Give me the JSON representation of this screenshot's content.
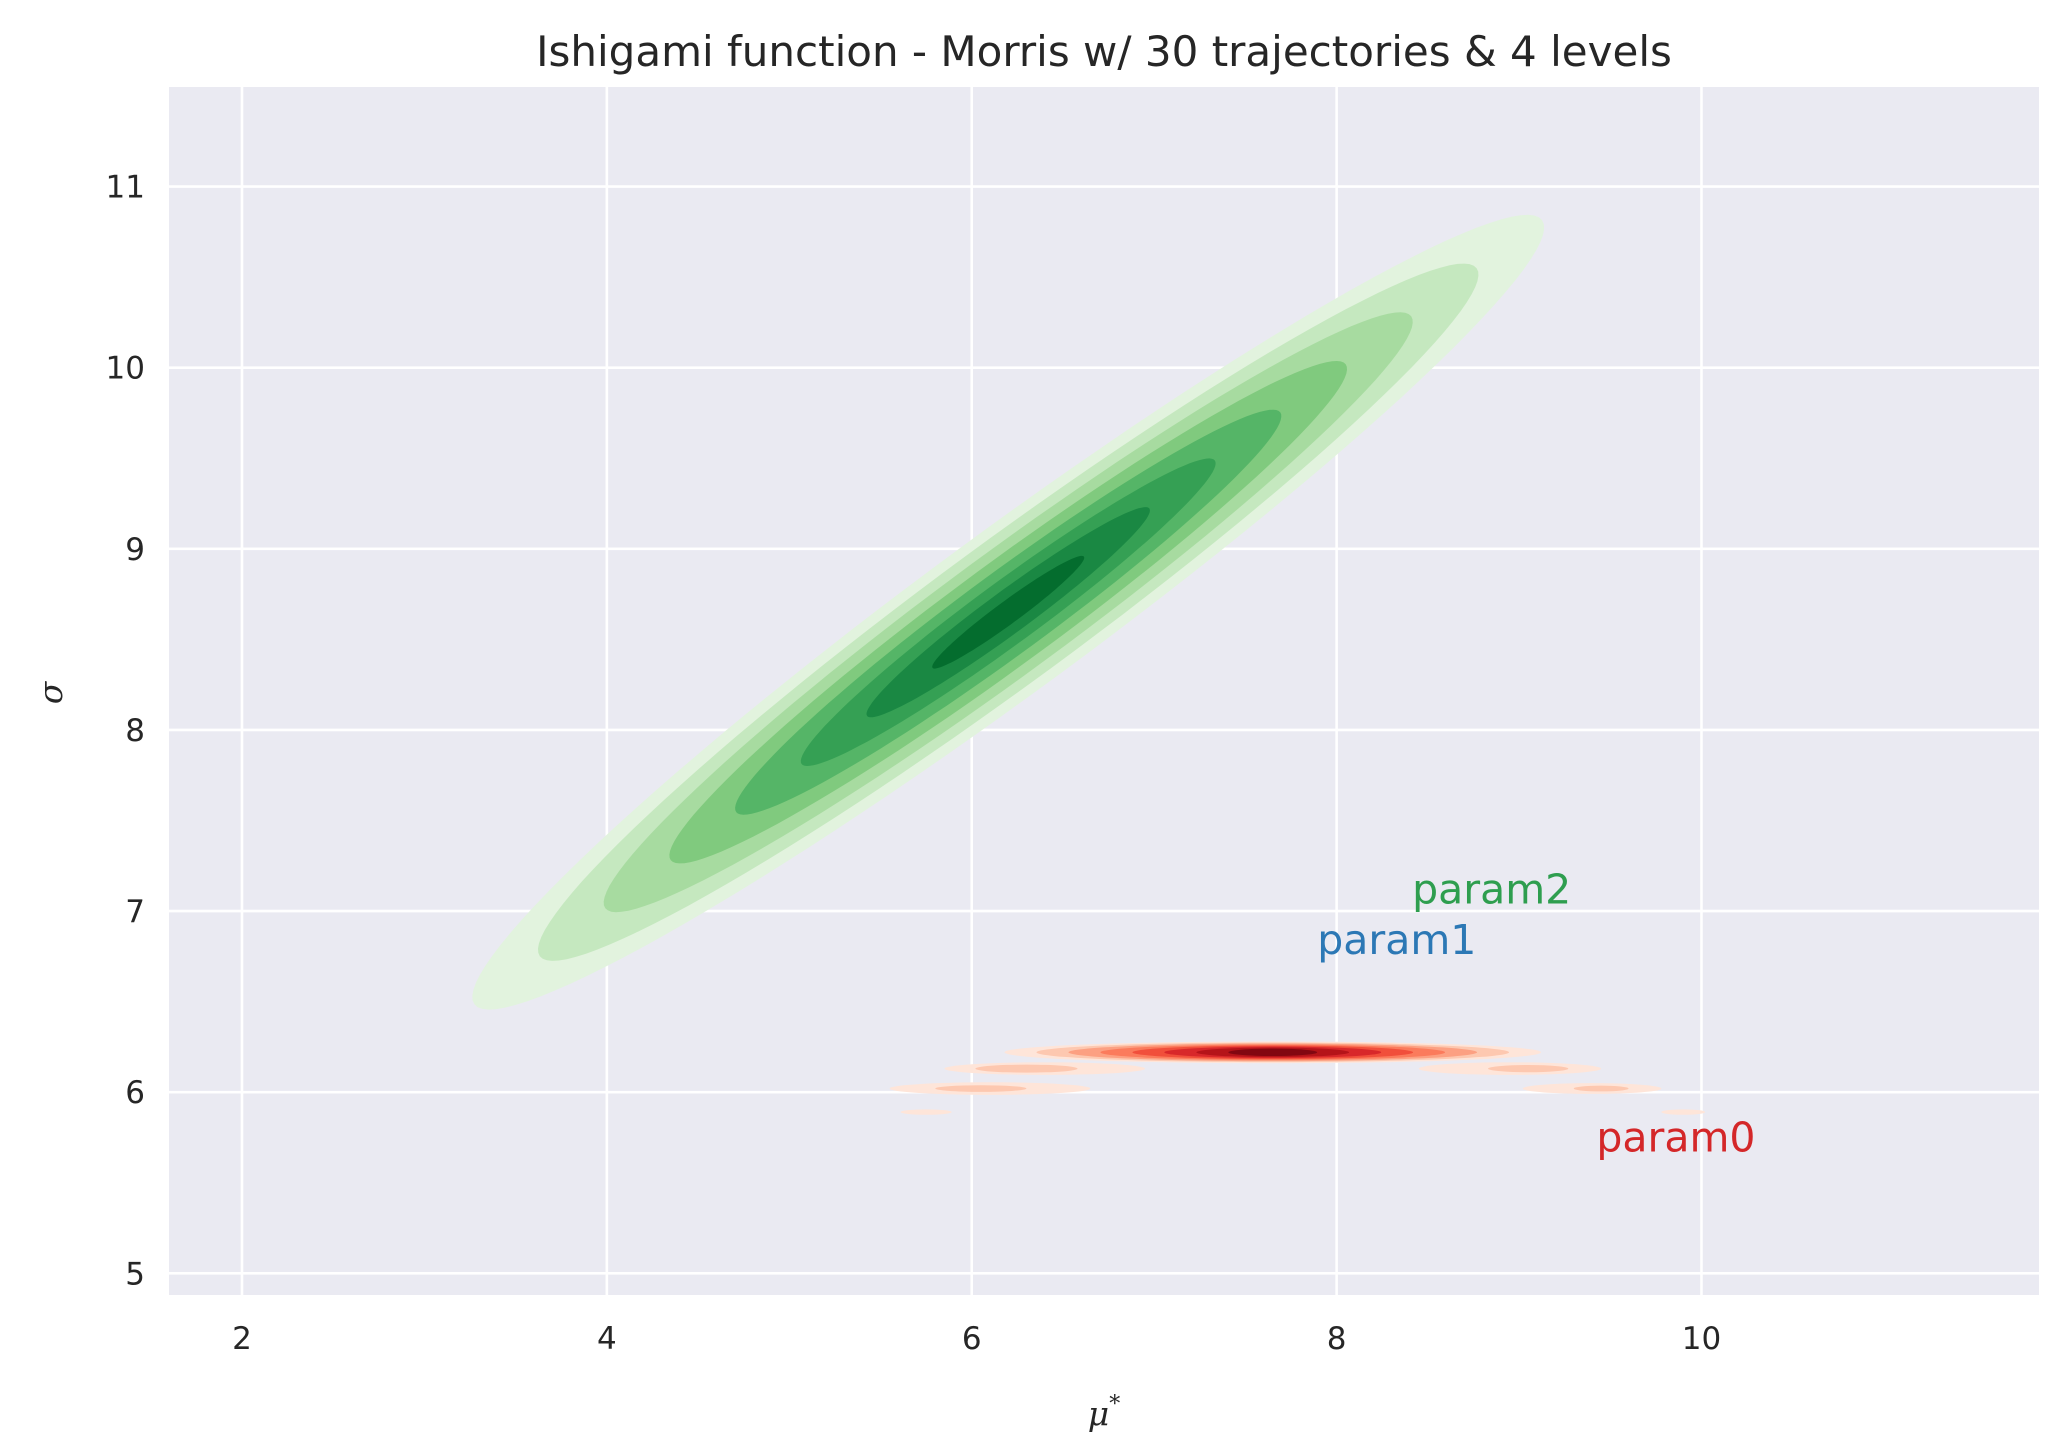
{
  "chart_data": {
    "type": "contour",
    "title": "Ishigami function - Morris w/ 30 trajectories & 4 levels",
    "xlabel": "μ*",
    "xlabel_sup": "*",
    "xlabel_base": "μ",
    "ylabel": "σ",
    "xlim": [
      1.6,
      11.85
    ],
    "ylim": [
      4.88,
      11.55
    ],
    "x_ticks": [
      2,
      4,
      6,
      8,
      10
    ],
    "y_ticks": [
      5,
      6,
      7,
      8,
      9,
      10,
      11
    ],
    "grid": true,
    "background": "#eaeaf2",
    "series": [
      {
        "name": "param2",
        "kind": "kde",
        "colormap": [
          "#e2f3de",
          "#c5e8bf",
          "#a7dba0",
          "#80ca7e",
          "#55b567",
          "#35a054",
          "#1a8843",
          "#046d2e"
        ],
        "center": [
          6.2,
          8.65
        ],
        "direction_deg": 36.5,
        "sd_major": 1.4,
        "sd_minor": 0.17,
        "label_color": "#2e9e4f"
      },
      {
        "name": "param0",
        "kind": "kde",
        "colormap": [
          "#fee5d9",
          "#fdc8b0",
          "#fca082",
          "#fb7b5c",
          "#f14f3b",
          "#d8282a",
          "#b51419",
          "#820711"
        ],
        "center": [
          7.65,
          6.22
        ],
        "sd_major": 0.85,
        "sd_minor": 0.03,
        "label_color": "#d42729"
      }
    ],
    "annotations": [
      {
        "text": "param2",
        "x": 8.85,
        "y": 7.12,
        "color": "#2e9e4f"
      },
      {
        "text": "param1",
        "x": 8.33,
        "y": 6.84,
        "color": "#2c78b5"
      },
      {
        "text": "param0",
        "x": 9.86,
        "y": 5.75,
        "color": "#d42729"
      }
    ]
  }
}
